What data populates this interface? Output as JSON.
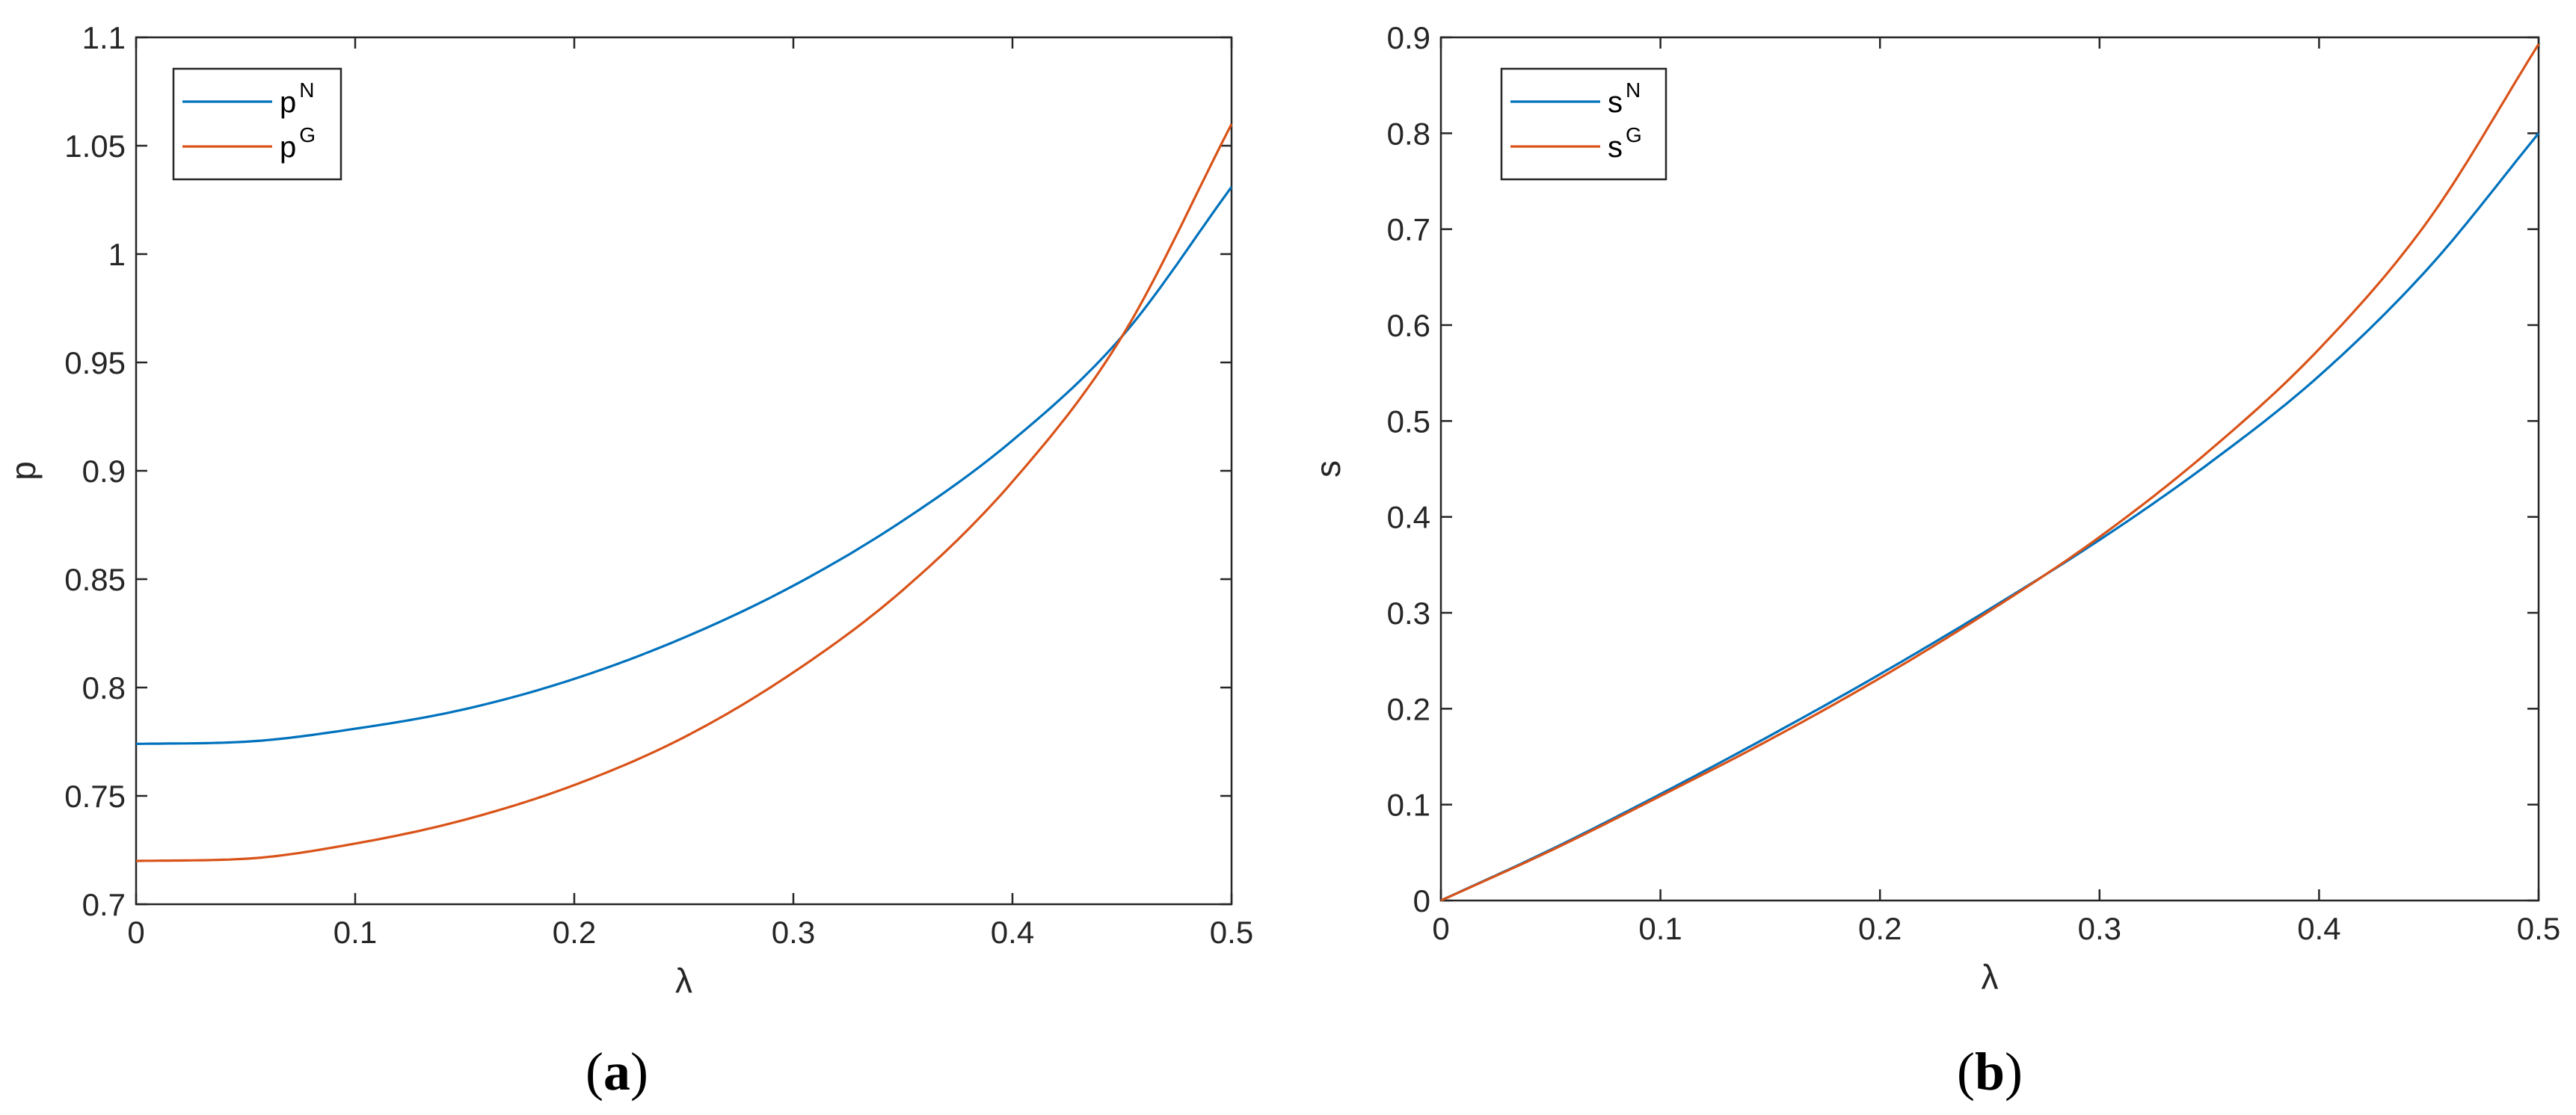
{
  "chart_data": [
    {
      "panel": "(a)",
      "caption": {
        "open": "(",
        "letter": "a",
        "close": ")"
      },
      "type": "line",
      "xlabel": "λ",
      "ylabel": "p",
      "xlim": [
        0,
        0.5
      ],
      "ylim": [
        0.7,
        1.1
      ],
      "xticks": [
        0,
        0.1,
        0.2,
        0.3,
        0.4,
        0.5
      ],
      "xtick_labels": [
        "0",
        "0.1",
        "0.2",
        "0.3",
        "0.4",
        "0.5"
      ],
      "yticks": [
        0.7,
        0.75,
        0.8,
        0.85,
        0.9,
        0.95,
        1,
        1.05,
        1.1
      ],
      "ytick_labels": [
        "0.7",
        "0.75",
        "0.8",
        "0.85",
        "0.9",
        "0.95",
        "1",
        "1.05",
        "1.1"
      ],
      "grid": false,
      "legend_position": "top-left",
      "series": [
        {
          "name": "p",
          "sup": "N",
          "color": "#0072BD",
          "x": [
            0,
            0.05,
            0.1,
            0.15,
            0.2,
            0.25,
            0.3,
            0.35,
            0.4,
            0.45,
            0.5
          ],
          "y": [
            0.774,
            0.775,
            0.781,
            0.79,
            0.804,
            0.823,
            0.847,
            0.877,
            0.914,
            0.962,
            1.031
          ]
        },
        {
          "name": "p",
          "sup": "G",
          "color": "#D95319",
          "x": [
            0,
            0.05,
            0.1,
            0.15,
            0.2,
            0.25,
            0.3,
            0.35,
            0.4,
            0.45,
            0.5
          ],
          "y": [
            0.72,
            0.721,
            0.728,
            0.739,
            0.755,
            0.777,
            0.807,
            0.845,
            0.895,
            0.962,
            1.06
          ]
        }
      ]
    },
    {
      "panel": "(b)",
      "caption": {
        "open": "(",
        "letter": "b",
        "close": ")"
      },
      "type": "line",
      "xlabel": "λ",
      "ylabel": "s",
      "xlim": [
        0,
        0.5
      ],
      "ylim": [
        0,
        0.9
      ],
      "xticks": [
        0,
        0.1,
        0.2,
        0.3,
        0.4,
        0.5
      ],
      "xtick_labels": [
        "0",
        "0.1",
        "0.2",
        "0.3",
        "0.4",
        "0.5"
      ],
      "yticks": [
        0,
        0.1,
        0.2,
        0.3,
        0.4,
        0.5,
        0.6,
        0.7,
        0.8,
        0.9
      ],
      "ytick_labels": [
        "0",
        "0.1",
        "0.2",
        "0.3",
        "0.4",
        "0.5",
        "0.6",
        "0.7",
        "0.8",
        "0.9"
      ],
      "grid": false,
      "legend_position": "top-left",
      "series": [
        {
          "name": "s",
          "sup": "N",
          "color": "#0072BD",
          "x": [
            0,
            0.05,
            0.1,
            0.15,
            0.2,
            0.25,
            0.3,
            0.35,
            0.4,
            0.45,
            0.5
          ],
          "y": [
            0,
            0.053,
            0.111,
            0.172,
            0.236,
            0.304,
            0.376,
            0.456,
            0.547,
            0.66,
            0.8
          ]
        },
        {
          "name": "s",
          "sup": "G",
          "color": "#D95319",
          "x": [
            0,
            0.05,
            0.1,
            0.15,
            0.2,
            0.25,
            0.3,
            0.35,
            0.4,
            0.45,
            0.5
          ],
          "y": [
            0,
            0.052,
            0.109,
            0.168,
            0.232,
            0.302,
            0.379,
            0.469,
            0.575,
            0.71,
            0.893
          ]
        }
      ]
    }
  ]
}
